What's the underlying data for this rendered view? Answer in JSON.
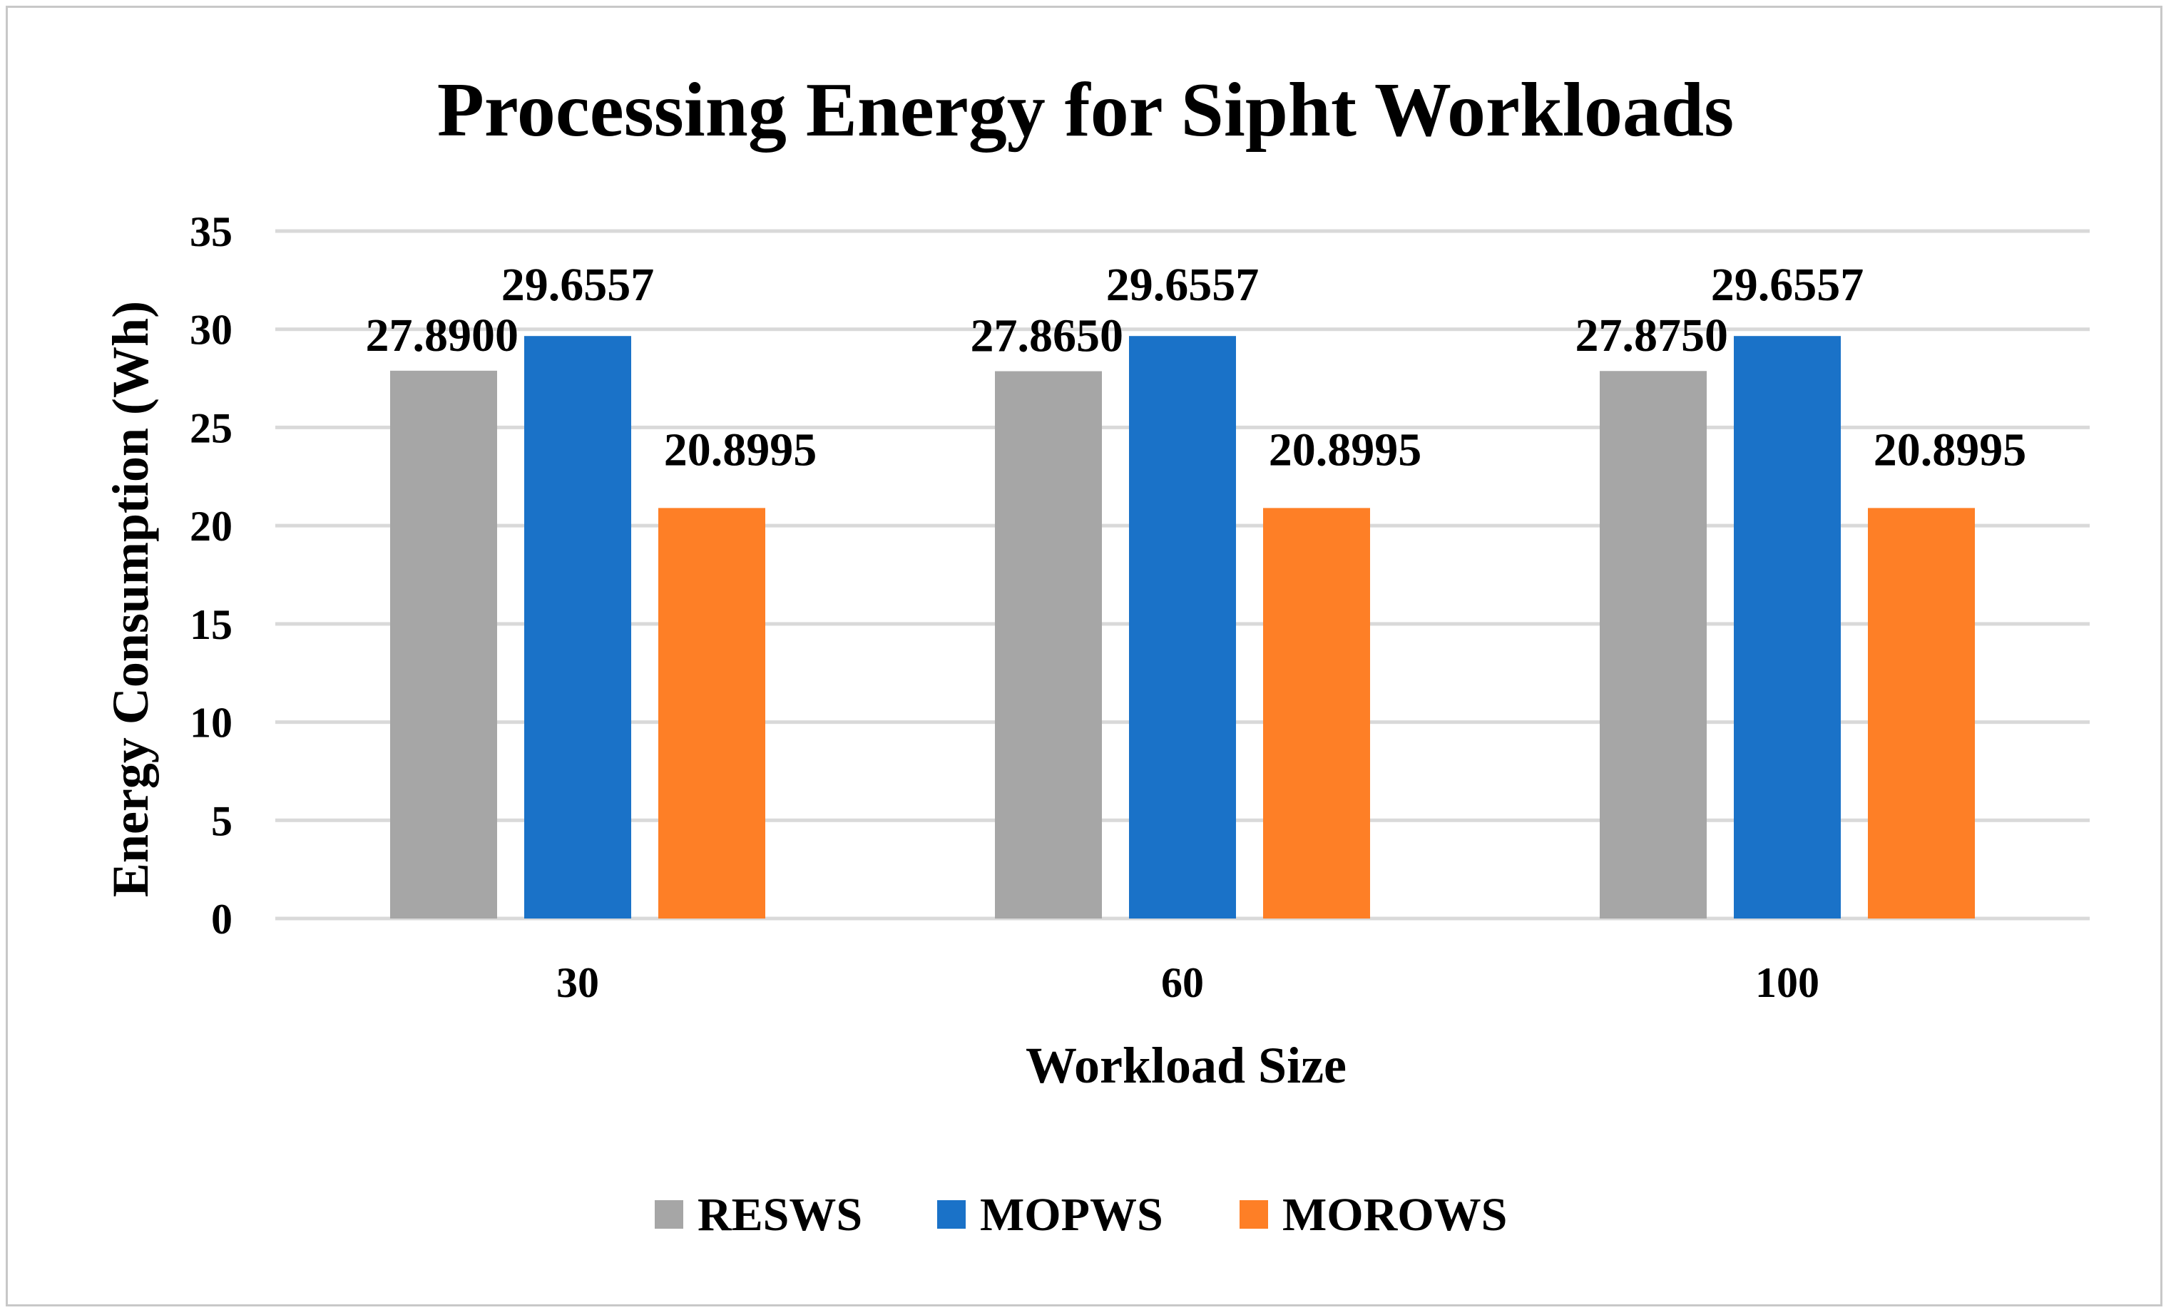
{
  "chart_data": {
    "type": "bar",
    "title": "Processing Energy for Sipht Workloads",
    "xlabel": "Workload Size",
    "ylabel": "Energy Consumption (Wh)",
    "categories": [
      "30",
      "60",
      "100"
    ],
    "ylim": [
      0,
      35
    ],
    "yticks": [
      0,
      5,
      10,
      15,
      20,
      25,
      30,
      35
    ],
    "grid": true,
    "legend_position": "bottom",
    "series": [
      {
        "name": "RESWS",
        "color": "#a6a6a6",
        "values": [
          27.89,
          27.865,
          27.875
        ],
        "labels": [
          "27.8900",
          "27.8650",
          "27.8750"
        ]
      },
      {
        "name": "MOPWS",
        "color": "#1a72c8",
        "values": [
          29.6557,
          29.6557,
          29.6557
        ],
        "labels": [
          "29.6557",
          "29.6557",
          "29.6557"
        ]
      },
      {
        "name": "MOROWS",
        "color": "#fe7f26",
        "values": [
          20.8995,
          20.8995,
          20.8995
        ],
        "labels": [
          "20.8995",
          "20.8995",
          "20.8995"
        ]
      }
    ]
  }
}
